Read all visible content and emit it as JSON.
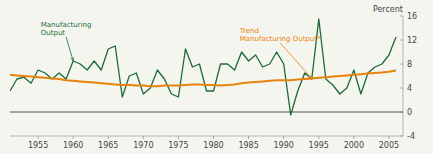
{
  "chart_data": {
    "type": "line",
    "x": [
      1951,
      1952,
      1953,
      1954,
      1955,
      1956,
      1957,
      1958,
      1959,
      1960,
      1961,
      1962,
      1963,
      1964,
      1965,
      1966,
      1967,
      1968,
      1969,
      1970,
      1971,
      1972,
      1973,
      1974,
      1975,
      1976,
      1977,
      1978,
      1979,
      1980,
      1981,
      1982,
      1983,
      1984,
      1985,
      1986,
      1987,
      1988,
      1989,
      1990,
      1991,
      1992,
      1993,
      1994,
      1995,
      1996,
      1997,
      1998,
      1999,
      2000,
      2001,
      2002,
      2003,
      2004,
      2005,
      2006
    ],
    "series": [
      {
        "color": "#1a6b35",
        "values": [
          3.5,
          5.5,
          5.8,
          4.8,
          7.0,
          6.5,
          5.5,
          6.5,
          5.5,
          8.5,
          8.0,
          7.0,
          8.5,
          7.0,
          10.5,
          11.0,
          2.5,
          6.0,
          6.5,
          3.0,
          4.0,
          7.0,
          5.5,
          3.0,
          2.5,
          10.5,
          7.5,
          8.0,
          3.5,
          3.5,
          8.0,
          8.0,
          7.0,
          10.0,
          8.5,
          9.5,
          7.5,
          8.0,
          10.0,
          8.0,
          -0.5,
          3.5,
          6.5,
          5.5,
          15.5,
          5.5,
          4.5,
          3.0,
          4.0,
          7.0,
          3.0,
          6.5,
          7.5,
          8.0,
          9.5,
          12.5
        ]
      },
      {
        "color": "#e8820a",
        "values": [
          6.2,
          6.1,
          6.0,
          5.9,
          5.8,
          5.7,
          5.6,
          5.5,
          5.3,
          5.2,
          5.1,
          5.0,
          4.9,
          4.8,
          4.7,
          4.6,
          4.5,
          4.5,
          4.4,
          4.4,
          4.3,
          4.3,
          4.4,
          4.4,
          4.4,
          4.5,
          4.6,
          4.6,
          4.5,
          4.5,
          4.4,
          4.5,
          4.6,
          4.8,
          4.9,
          5.0,
          5.1,
          5.2,
          5.3,
          5.3,
          5.3,
          5.4,
          5.5,
          5.6,
          5.7,
          5.8,
          5.9,
          6.0,
          6.1,
          6.2,
          6.3,
          6.4,
          6.5,
          6.6,
          6.7,
          6.9
        ]
      }
    ],
    "ylabel": "Percent",
    "xlim": [
      1951,
      2007
    ],
    "ylim": [
      -4,
      16
    ],
    "xticks": [
      1955,
      1960,
      1965,
      1970,
      1975,
      1980,
      1985,
      1990,
      1995,
      2000,
      2005
    ],
    "yticks": [
      -4,
      0,
      4,
      8,
      12,
      16
    ],
    "hline": 0,
    "grid": false,
    "annotations": [
      {
        "text": "Manufacturing\nOutput",
        "x": 1960,
        "y": 8.5,
        "text_x": 1959.0,
        "text_y": 12.5
      },
      {
        "text": "Trend\nManufacturing Output*",
        "x": 1994,
        "y": 5.6,
        "text_x": 1989.5,
        "text_y": 11.5
      }
    ]
  }
}
